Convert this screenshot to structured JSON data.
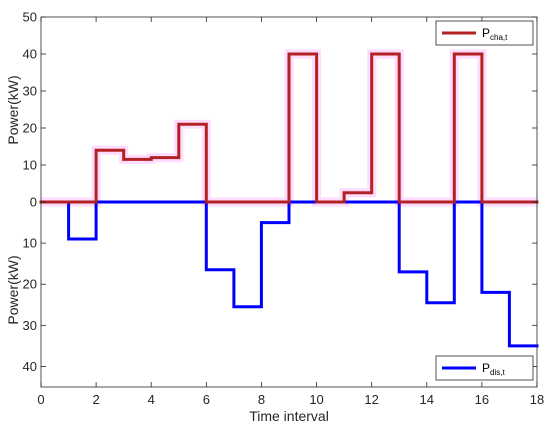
{
  "chart_data": {
    "type": "line",
    "xlabel": "Time interval",
    "xlim": [
      0,
      18
    ],
    "x_ticks": [
      "0",
      "2",
      "4",
      "6",
      "8",
      "10",
      "12",
      "14",
      "16",
      "18"
    ],
    "x_tick_values": [
      0,
      2,
      4,
      6,
      8,
      10,
      12,
      14,
      16,
      18
    ],
    "upper_axis": {
      "ylabel": "Power(kW)",
      "ylim": [
        0,
        50
      ],
      "ticks": [
        "0",
        "10",
        "20",
        "30",
        "40",
        "50"
      ],
      "tick_values": [
        0,
        10,
        20,
        30,
        40,
        50
      ]
    },
    "lower_axis": {
      "ylabel": "Power(kW)",
      "ylim": [
        0,
        45
      ],
      "ticks": [
        "0",
        "10",
        "20",
        "30",
        "40"
      ],
      "tick_values": [
        0,
        10,
        20,
        30,
        40
      ]
    },
    "series": [
      {
        "name_main": "P",
        "name_sub": "cha,t",
        "color": "#b22222",
        "shadow_color": "#ff99ff",
        "panel": "upper",
        "style": "step",
        "x": [
          0,
          1,
          2,
          3,
          4,
          5,
          6,
          7,
          8,
          9,
          10,
          11,
          12,
          13,
          14,
          15,
          16,
          17,
          18
        ],
        "values": [
          0,
          0,
          14,
          11.5,
          12,
          21,
          0,
          0,
          0,
          40,
          0,
          2.5,
          40,
          0,
          0,
          40,
          0,
          0,
          0
        ]
      },
      {
        "name_main": "P",
        "name_sub": "dis,t",
        "color": "#0000ff",
        "panel": "lower",
        "style": "step",
        "x": [
          0,
          1,
          2,
          3,
          4,
          5,
          6,
          7,
          8,
          9,
          10,
          11,
          12,
          13,
          14,
          15,
          16,
          17,
          18
        ],
        "values": [
          0,
          9,
          0,
          0,
          0,
          0,
          16.5,
          25.5,
          5,
          0,
          0,
          0,
          0,
          17,
          24.5,
          0,
          22,
          35,
          35
        ]
      }
    ],
    "legends": [
      {
        "placement": "top-right",
        "series": 0
      },
      {
        "placement": "bottom-right",
        "series": 1
      }
    ],
    "grid": false
  }
}
